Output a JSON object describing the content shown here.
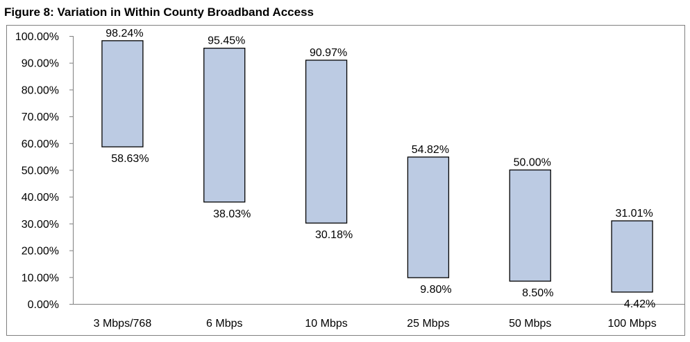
{
  "chart_data": {
    "type": "bar",
    "title": "Figure 8: Variation in Within County Broadband Access",
    "xlabel": "",
    "ylabel": "",
    "ylim": [
      0,
      100
    ],
    "grid": false,
    "legend": "none",
    "y_ticks": [
      "0.00%",
      "10.00%",
      "20.00%",
      "30.00%",
      "40.00%",
      "50.00%",
      "60.00%",
      "70.00%",
      "80.00%",
      "90.00%",
      "100.00%"
    ],
    "categories": [
      "3 Mbps/768",
      "6 Mbps",
      "10 Mbps",
      "25 Mbps",
      "50 Mbps",
      "100 Mbps"
    ],
    "low": [
      58.63,
      38.03,
      30.18,
      9.8,
      8.5,
      4.42
    ],
    "high": [
      98.24,
      95.45,
      90.97,
      54.82,
      50.0,
      31.01
    ],
    "low_labels": [
      "58.63%",
      "38.03%",
      "30.18%",
      "9.80%",
      "8.50%",
      "4.42%"
    ],
    "high_labels": [
      "98.24%",
      "95.45%",
      "90.97%",
      "54.82%",
      "50.00%",
      "31.01%"
    ],
    "bar_color": "#bccbe3",
    "bar_stroke": "#000000"
  }
}
